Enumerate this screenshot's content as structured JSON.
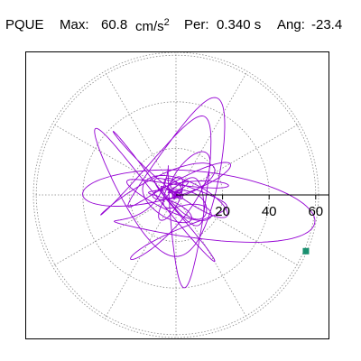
{
  "header": {
    "station": "PQUE",
    "max_label": "Max:",
    "max_value": "60.8",
    "max_unit": "cm/s",
    "max_exp": "2",
    "period_label": "Per:",
    "period_value": "0.340 s",
    "angle_label": "Ang:",
    "angle_value": "-23.4"
  },
  "chart_data": {
    "type": "polar-orbit",
    "radial_ticks": [
      20,
      40,
      60
    ],
    "radial_max": 60.8,
    "peak_angle_deg": -23.4,
    "grid": true,
    "colors": {
      "trace": "#9400D3",
      "marker": "#1A9070",
      "grid": "#888888",
      "axis": "#000000"
    }
  }
}
